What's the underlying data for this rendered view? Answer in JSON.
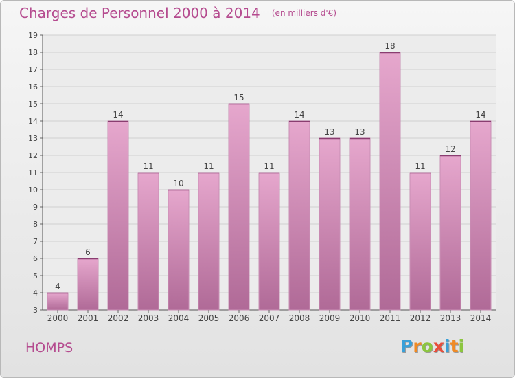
{
  "title": "Charges de Personnel 2000 à 2014",
  "unit": "(en milliers d'€)",
  "city": "HOMPS",
  "logo": {
    "letters": [
      "P",
      "r",
      "o",
      "x",
      "i",
      "t",
      "i"
    ],
    "colors": [
      "#3aa0d8",
      "#f08a24",
      "#8cc63f",
      "#e84e3c",
      "#3aa0d8",
      "#f08a24",
      "#8cc63f"
    ]
  },
  "colors": {
    "bar": "#c884b0",
    "bar_light": "#e6a7cd",
    "text": "#b54b8f"
  },
  "chart_data": {
    "type": "bar",
    "categories": [
      "2000",
      "2001",
      "2002",
      "2003",
      "2004",
      "2005",
      "2006",
      "2007",
      "2008",
      "2009",
      "2010",
      "2011",
      "2012",
      "2013",
      "2014"
    ],
    "values": [
      4,
      6,
      14,
      11,
      10,
      11,
      15,
      11,
      14,
      13,
      13,
      18,
      11,
      12,
      14
    ],
    "ylim": [
      3,
      19
    ],
    "yticks": [
      3,
      4,
      5,
      6,
      7,
      8,
      9,
      10,
      11,
      12,
      13,
      14,
      15,
      16,
      17,
      18,
      19
    ],
    "grid": true
  }
}
